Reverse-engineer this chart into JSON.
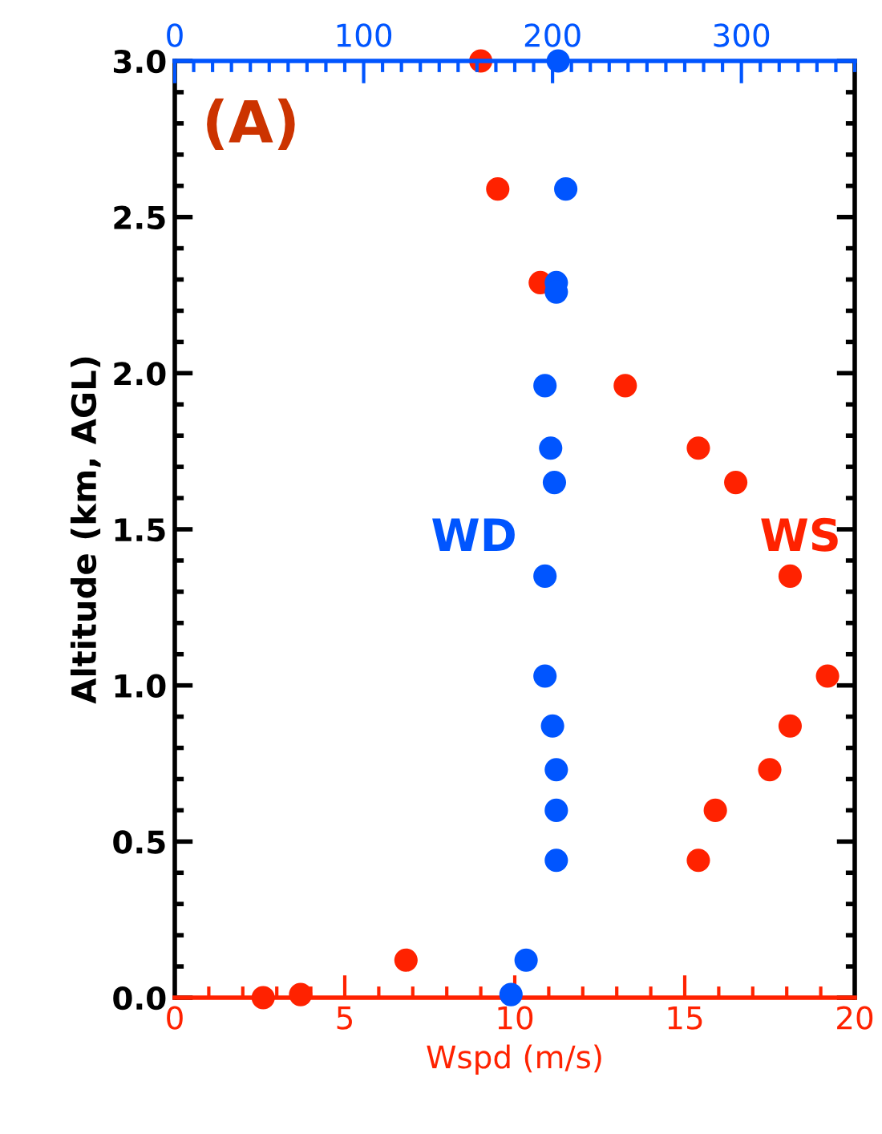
{
  "chart_data": {
    "type": "scatter",
    "xlabel": "Wspd (m/s)",
    "ylabel": "Altitude (km, AGL)",
    "annotations": [
      "(A)"
    ],
    "marker": "circle",
    "grid": false,
    "xlim": [
      0,
      20
    ],
    "xticks": [
      0,
      5,
      10,
      15,
      20
    ],
    "x2lim": [
      0,
      360
    ],
    "x2ticks": [
      0,
      100,
      200,
      300
    ],
    "ylim": [
      0,
      3
    ],
    "yticks": [
      {
        "value": 0,
        "label": "0.0"
      },
      {
        "value": 0.5,
        "label": "0.5"
      },
      {
        "value": 1,
        "label": "1.0"
      },
      {
        "value": 1.5,
        "label": "1.5"
      },
      {
        "value": 2,
        "label": "2.0"
      },
      {
        "value": 2.5,
        "label": "2.5"
      },
      {
        "value": 3,
        "label": "3.0"
      }
    ],
    "series": [
      {
        "name": "WS",
        "color": "#ff2200",
        "x": [
          9.0,
          9.5,
          10.75,
          13.25,
          15.4,
          16.5,
          18.1,
          19.2,
          18.1,
          17.5,
          15.9,
          15.4,
          6.8,
          3.7,
          2.6
        ],
        "values": [
          3.0,
          2.59,
          2.29,
          1.96,
          1.76,
          1.65,
          1.35,
          1.03,
          0.87,
          0.73,
          0.6,
          0.44,
          0.12,
          0.01,
          0.0
        ]
      },
      {
        "name": "WD",
        "color": "#0055ff",
        "axis": "x2",
        "x": [
          203,
          207,
          202,
          202,
          196,
          199,
          201,
          196,
          196,
          200,
          202,
          202,
          202,
          186,
          178
        ],
        "values": [
          3.0,
          2.59,
          2.29,
          2.26,
          1.96,
          1.76,
          1.65,
          1.35,
          1.03,
          0.87,
          0.73,
          0.6,
          0.44,
          0.12,
          0.01
        ]
      }
    ]
  }
}
